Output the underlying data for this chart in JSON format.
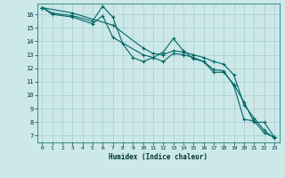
{
  "xlabel": "Humidex (Indice chaleur)",
  "background_color": "#cce8e8",
  "grid_color": "#aacccc",
  "line_color": "#006666",
  "xlim": [
    -0.5,
    23.5
  ],
  "ylim": [
    6.5,
    16.8
  ],
  "x_ticks": [
    0,
    1,
    2,
    3,
    4,
    5,
    6,
    7,
    8,
    9,
    10,
    11,
    12,
    13,
    14,
    15,
    16,
    17,
    18,
    19,
    20,
    21,
    22,
    23
  ],
  "y_ticks": [
    7,
    8,
    9,
    10,
    11,
    12,
    13,
    14,
    15,
    16
  ],
  "line1_x": [
    0,
    1,
    3,
    5,
    6,
    7,
    8,
    9,
    10,
    11,
    12,
    13,
    14,
    15,
    16,
    17,
    18,
    19,
    20,
    21,
    22,
    23
  ],
  "line1_y": [
    16.5,
    16.1,
    15.9,
    15.5,
    16.6,
    15.8,
    13.8,
    12.8,
    12.5,
    12.8,
    13.2,
    14.2,
    13.3,
    12.7,
    12.5,
    11.9,
    11.8,
    10.7,
    8.2,
    8.1,
    7.2,
    6.9
  ],
  "line2_x": [
    0,
    1,
    3,
    5,
    6,
    7,
    10,
    11,
    12,
    13,
    14,
    15,
    16,
    17,
    18,
    19,
    20,
    21,
    22,
    23
  ],
  "line2_y": [
    16.5,
    16.0,
    15.8,
    15.3,
    15.9,
    14.3,
    13.0,
    12.8,
    12.5,
    13.1,
    13.0,
    12.8,
    12.5,
    11.7,
    11.7,
    10.8,
    9.5,
    8.0,
    8.0,
    6.9
  ],
  "line3_x": [
    0,
    3,
    7,
    10,
    11,
    12,
    13,
    14,
    15,
    16,
    17,
    18,
    19,
    20,
    21,
    22,
    23
  ],
  "line3_y": [
    16.5,
    16.1,
    15.2,
    13.5,
    13.1,
    13.0,
    13.3,
    13.2,
    13.0,
    12.8,
    12.5,
    12.3,
    11.5,
    9.3,
    8.3,
    7.4,
    6.8
  ]
}
